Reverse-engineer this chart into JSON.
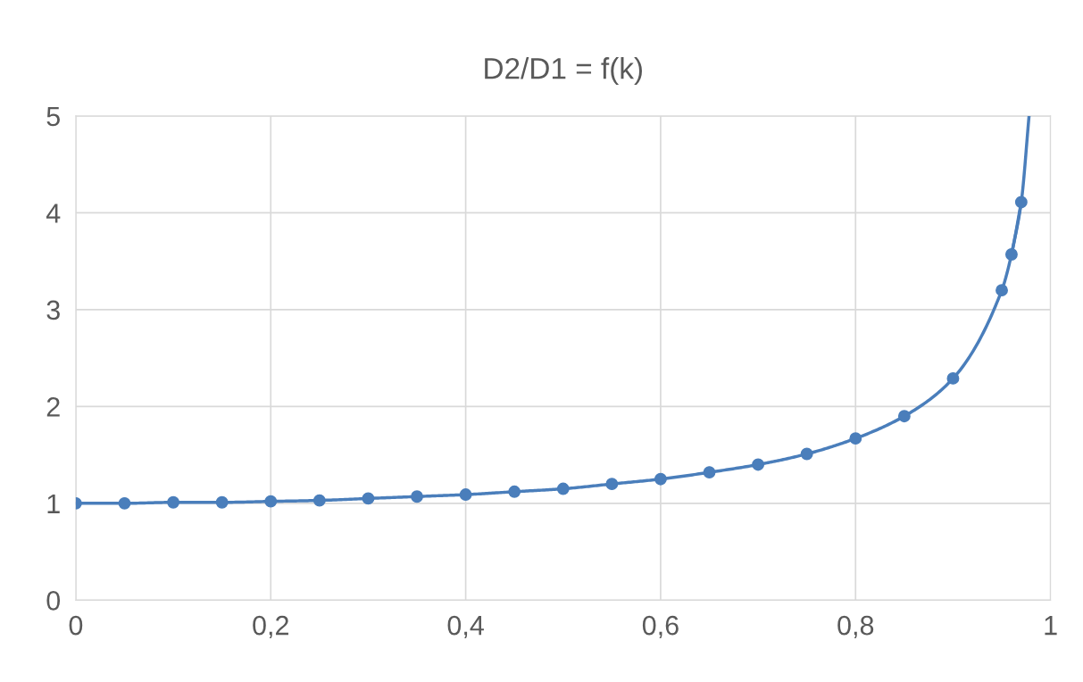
{
  "chart_data": {
    "type": "line",
    "title": "D2/D1 = f(k)",
    "series": [
      {
        "color": "#4a7ebb",
        "marker": "circle",
        "x": [
          0,
          0.05,
          0.1,
          0.15,
          0.2,
          0.25,
          0.3,
          0.35,
          0.4,
          0.45,
          0.5,
          0.55,
          0.6,
          0.65,
          0.7,
          0.75,
          0.8,
          0.85,
          0.9,
          0.95,
          0.96,
          0.97
        ],
        "values": [
          1.0,
          1.0,
          1.01,
          1.01,
          1.02,
          1.03,
          1.05,
          1.07,
          1.09,
          1.12,
          1.15,
          1.2,
          1.25,
          1.32,
          1.4,
          1.51,
          1.67,
          1.9,
          2.29,
          3.2,
          3.57,
          4.11
        ]
      },
      {
        "color": "#4a7ebb",
        "marker": "none",
        "x": [
          0.96,
          0.97,
          0.978
        ],
        "values": [
          3.57,
          4.11,
          5.0
        ]
      }
    ],
    "xlim": [
      0,
      1
    ],
    "xticks": [
      0,
      {
        "value": 0.2,
        "label": "0,2"
      },
      {
        "value": 0.4,
        "label": "0,4"
      },
      {
        "value": 0.6,
        "label": "0,6"
      },
      {
        "value": 0.8,
        "label": "0,8"
      },
      1
    ],
    "ylim": [
      0,
      5
    ],
    "yticks": [
      0,
      1,
      2,
      3,
      4,
      5
    ],
    "grid": true,
    "line_style": "solid"
  }
}
